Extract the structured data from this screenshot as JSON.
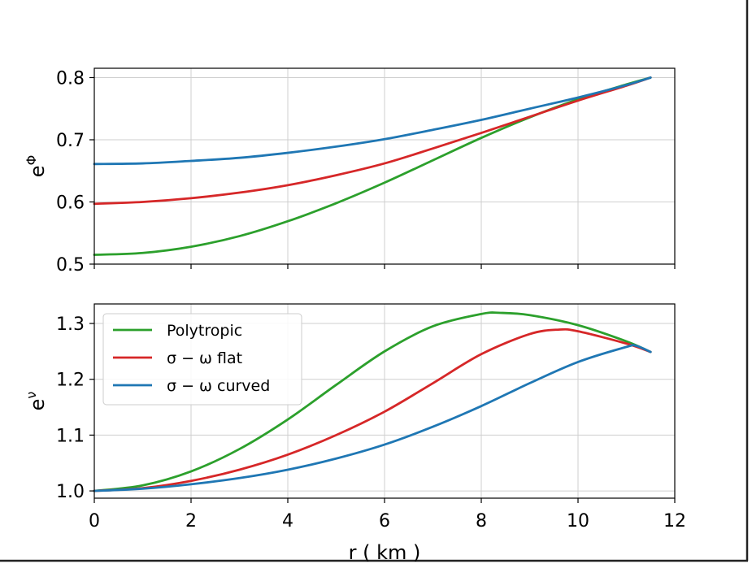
{
  "chart_data": [
    {
      "type": "line",
      "panel": "top",
      "ylabel_base": "e",
      "ylabel_sup": "Φ",
      "xlim": [
        0,
        12
      ],
      "ylim": [
        0.5,
        0.815
      ],
      "yticks": [
        0.5,
        0.6,
        0.7,
        0.8
      ],
      "ytick_labels": [
        "0.5",
        "0.6",
        "0.7",
        "0.8"
      ],
      "xticks": [
        0,
        2,
        4,
        6,
        8,
        10,
        12
      ],
      "grid": true,
      "series": [
        {
          "name": "Polytropic",
          "color": "#2ca02c",
          "x": [
            0,
            1,
            2,
            3,
            4,
            5,
            6,
            7,
            8,
            9,
            10,
            11,
            11.5
          ],
          "y": [
            0.515,
            0.518,
            0.528,
            0.545,
            0.569,
            0.598,
            0.631,
            0.667,
            0.703,
            0.736,
            0.765,
            0.789,
            0.8
          ]
        },
        {
          "name": "σ − ω flat",
          "color": "#d62728",
          "x": [
            0,
            1,
            2,
            3,
            4,
            5,
            6,
            7,
            8,
            9,
            10,
            11,
            11.5
          ],
          "y": [
            0.597,
            0.6,
            0.606,
            0.615,
            0.627,
            0.643,
            0.662,
            0.686,
            0.711,
            0.737,
            0.763,
            0.787,
            0.8
          ]
        },
        {
          "name": "σ − ω curved",
          "color": "#1f77b4",
          "x": [
            0,
            1,
            2,
            3,
            4,
            5,
            6,
            7,
            8,
            9,
            10,
            11,
            11.5
          ],
          "y": [
            0.661,
            0.662,
            0.666,
            0.671,
            0.679,
            0.689,
            0.701,
            0.716,
            0.732,
            0.75,
            0.768,
            0.788,
            0.8
          ]
        }
      ]
    },
    {
      "type": "line",
      "panel": "bottom",
      "ylabel_base": "e",
      "ylabel_sup": "ν",
      "xlabel": "r ( km )",
      "xlim": [
        0,
        12
      ],
      "ylim": [
        0.987,
        1.335
      ],
      "yticks": [
        1.0,
        1.1,
        1.2,
        1.3
      ],
      "ytick_labels": [
        "1.0",
        "1.1",
        "1.2",
        "1.3"
      ],
      "xticks": [
        0,
        2,
        4,
        6,
        8,
        10,
        12
      ],
      "xtick_labels": [
        "0",
        "2",
        "4",
        "6",
        "8",
        "10",
        "12"
      ],
      "grid": true,
      "legend": {
        "placement": "upper-left",
        "entries": [
          "Polytropic",
          "σ − ω flat",
          "σ − ω curved"
        ]
      },
      "series": [
        {
          "name": "Polytropic",
          "color": "#2ca02c",
          "x": [
            0,
            1,
            2,
            3,
            4,
            5,
            6,
            7,
            8,
            8.4,
            9,
            10,
            11,
            11.5
          ],
          "y": [
            1.0,
            1.01,
            1.035,
            1.075,
            1.128,
            1.19,
            1.25,
            1.295,
            1.317,
            1.319,
            1.315,
            1.297,
            1.268,
            1.249
          ]
        },
        {
          "name": "σ − ω flat",
          "color": "#d62728",
          "x": [
            0,
            1,
            2,
            3,
            4,
            5,
            6,
            7,
            8,
            9,
            9.6,
            10,
            11,
            11.5
          ],
          "y": [
            1.0,
            1.005,
            1.018,
            1.038,
            1.065,
            1.1,
            1.142,
            1.193,
            1.245,
            1.281,
            1.289,
            1.286,
            1.264,
            1.249
          ]
        },
        {
          "name": "σ − ω curved",
          "color": "#1f77b4",
          "x": [
            0,
            1,
            2,
            3,
            4,
            5,
            6,
            7,
            8,
            9,
            10,
            11,
            11.2,
            11.5
          ],
          "y": [
            1.0,
            1.004,
            1.012,
            1.023,
            1.038,
            1.058,
            1.083,
            1.115,
            1.152,
            1.193,
            1.231,
            1.258,
            1.26,
            1.249
          ]
        }
      ]
    }
  ]
}
